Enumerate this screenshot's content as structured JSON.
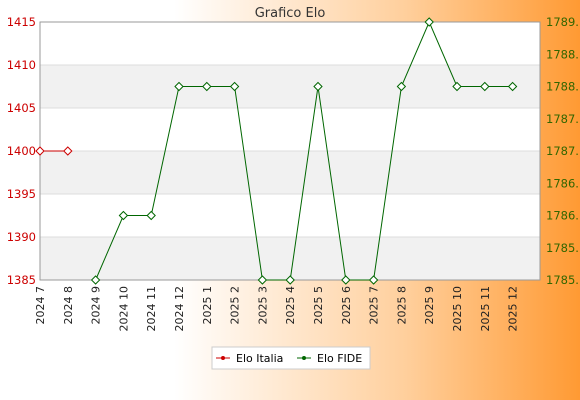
{
  "chart_data": {
    "type": "line",
    "title": "Grafico Elo",
    "categories": [
      "2024 7",
      "2024 8",
      "2024 9",
      "2024 10",
      "2024 11",
      "2024 12",
      "2025 1",
      "2025 2",
      "2025 3",
      "2025 4",
      "2025 5",
      "2025 6",
      "2025 7",
      "2025 8",
      "2025 9",
      "2025 10",
      "2025 11",
      "2025 12"
    ],
    "y_left": {
      "min": 1385,
      "max": 1415,
      "ticks": [
        "1385",
        "1390",
        "1395",
        "1400",
        "1405",
        "1410",
        "1415"
      ]
    },
    "y_right": {
      "min": 1785,
      "max": 1789,
      "ticks": [
        "1785.",
        "1785.",
        "1786.",
        "1786.",
        "1787.",
        "1787.",
        "1788.",
        "1788.",
        "1789."
      ]
    },
    "grid": true,
    "legend_position": "bottom",
    "series": [
      {
        "name": "Elo Italia",
        "axis": "left",
        "color": "#cc0000",
        "values": [
          1400,
          1400,
          null,
          null,
          null,
          null,
          null,
          null,
          null,
          null,
          null,
          null,
          null,
          null,
          null,
          null,
          null,
          null
        ]
      },
      {
        "name": "Elo FIDE",
        "axis": "right",
        "color": "#006600",
        "values": [
          null,
          null,
          1785,
          1786,
          1786,
          1788,
          1788,
          1788,
          1785,
          1785,
          1788,
          1785,
          1785,
          1788,
          1789,
          1788,
          1788,
          1788
        ]
      }
    ]
  }
}
